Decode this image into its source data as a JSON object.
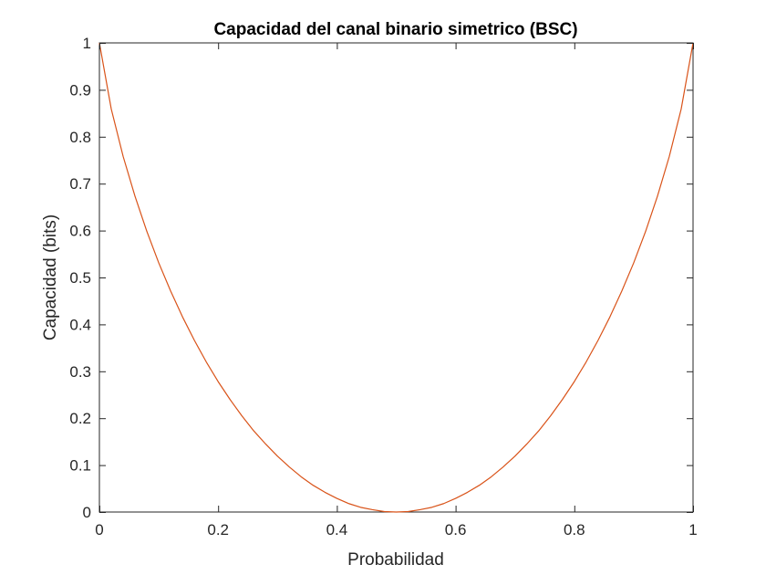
{
  "chart_data": {
    "type": "line",
    "title": "Capacidad del canal binario simetrico (BSC)",
    "xlabel": "Probabilidad",
    "ylabel": "Capacidad (bits)",
    "xlim": [
      0,
      1
    ],
    "ylim": [
      0,
      1
    ],
    "xticks": [
      0,
      0.2,
      0.4,
      0.6,
      0.8,
      1
    ],
    "xtick_labels": [
      "0",
      "0.2",
      "0.4",
      "0.6",
      "0.8",
      "1"
    ],
    "yticks": [
      0,
      0.1,
      0.2,
      0.3,
      0.4,
      0.5,
      0.6,
      0.7,
      0.8,
      0.9,
      1
    ],
    "ytick_labels": [
      "0",
      "0.1",
      "0.2",
      "0.3",
      "0.4",
      "0.5",
      "0.6",
      "0.7",
      "0.8",
      "0.9",
      "1"
    ],
    "grid": false,
    "series": [
      {
        "color": "#d95319",
        "x": [
          0.0,
          0.02,
          0.04,
          0.06,
          0.08,
          0.1,
          0.12,
          0.14,
          0.16,
          0.18,
          0.2,
          0.22,
          0.24,
          0.26,
          0.28,
          0.3,
          0.32,
          0.34,
          0.36,
          0.38,
          0.4,
          0.42,
          0.44,
          0.46,
          0.48,
          0.5,
          0.52,
          0.54,
          0.56,
          0.58,
          0.6,
          0.62,
          0.64,
          0.66,
          0.68,
          0.7,
          0.72,
          0.74,
          0.76,
          0.78,
          0.8,
          0.82,
          0.84,
          0.86,
          0.88,
          0.9,
          0.92,
          0.94,
          0.96,
          0.98,
          1.0
        ],
        "y": [
          1.0,
          0.859,
          0.758,
          0.673,
          0.598,
          0.531,
          0.471,
          0.416,
          0.366,
          0.32,
          0.278,
          0.24,
          0.205,
          0.173,
          0.145,
          0.119,
          0.096,
          0.075,
          0.057,
          0.042,
          0.029,
          0.018,
          0.01,
          0.005,
          0.001,
          0.0,
          0.001,
          0.005,
          0.01,
          0.018,
          0.029,
          0.042,
          0.057,
          0.075,
          0.096,
          0.119,
          0.145,
          0.173,
          0.205,
          0.24,
          0.278,
          0.32,
          0.366,
          0.416,
          0.471,
          0.531,
          0.598,
          0.673,
          0.758,
          0.859,
          1.0
        ]
      }
    ]
  }
}
